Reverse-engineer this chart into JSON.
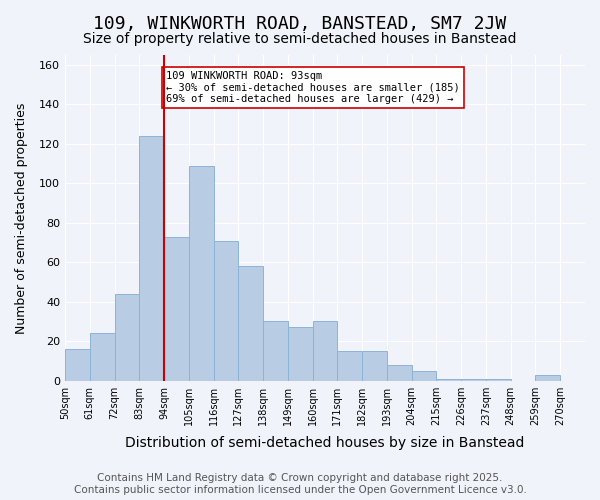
{
  "title1": "109, WINKWORTH ROAD, BANSTEAD, SM7 2JW",
  "title2": "Size of property relative to semi-detached houses in Banstead",
  "xlabel": "Distribution of semi-detached houses by size in Banstead",
  "ylabel": "Number of semi-detached properties",
  "bar_color": "#b8cce4",
  "bar_edge_color": "#8db4d6",
  "vline_color": "#cc0000",
  "vline_x": 93,
  "property_size": 93,
  "annotation_line1": "109 WINKWORTH ROAD: 93sqm",
  "annotation_line2": "← 30% of semi-detached houses are smaller (185)",
  "annotation_line3": "69% of semi-detached houses are larger (429) →",
  "categories": [
    "50sqm",
    "61sqm",
    "72sqm",
    "83sqm",
    "94sqm",
    "105sqm",
    "116sqm",
    "127sqm",
    "138sqm",
    "149sqm",
    "160sqm",
    "171sqm",
    "182sqm",
    "193sqm",
    "204sqm",
    "215sqm",
    "226sqm",
    "237sqm",
    "248sqm",
    "259sqm",
    "270sqm"
  ],
  "bin_edges": [
    50,
    61,
    72,
    83,
    94,
    105,
    116,
    127,
    138,
    149,
    160,
    171,
    182,
    193,
    204,
    215,
    226,
    237,
    248,
    259,
    270
  ],
  "bin_width": 11,
  "values": [
    16,
    24,
    44,
    124,
    73,
    109,
    71,
    58,
    30,
    27,
    30,
    15,
    15,
    8,
    5,
    1,
    1,
    1,
    0,
    3
  ],
  "ylim": [
    0,
    165
  ],
  "yticks": [
    0,
    20,
    40,
    60,
    80,
    100,
    120,
    140,
    160
  ],
  "footer": "Contains HM Land Registry data © Crown copyright and database right 2025.\nContains public sector information licensed under the Open Government Licence v3.0.",
  "background_color": "#f0f4fa",
  "grid_color": "#ffffff",
  "title1_fontsize": 13,
  "title2_fontsize": 10,
  "xlabel_fontsize": 10,
  "ylabel_fontsize": 9,
  "footer_fontsize": 7.5
}
